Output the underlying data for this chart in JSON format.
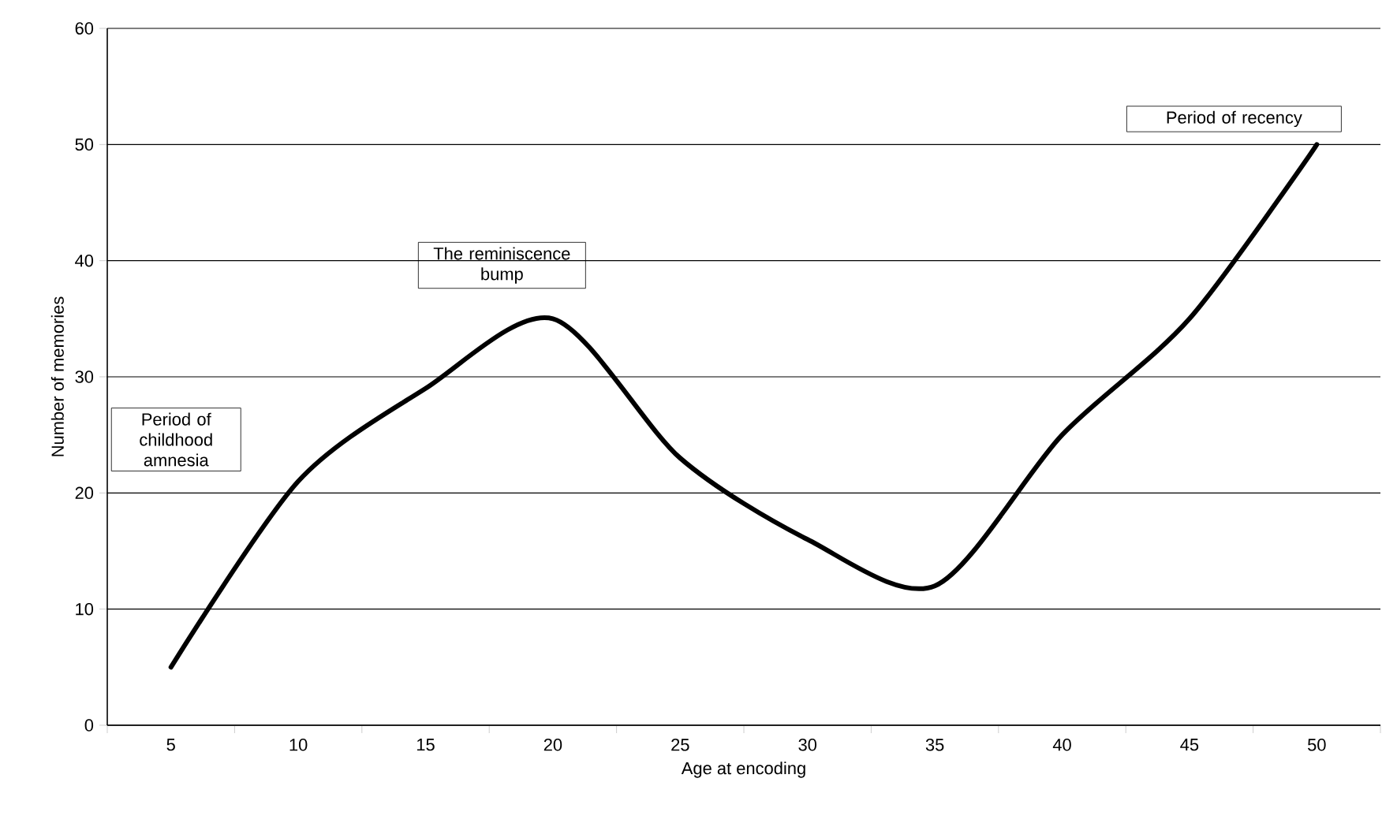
{
  "chart_data": {
    "type": "line",
    "xlabel": "Age at encoding",
    "ylabel": "Number of memories",
    "categories": [
      "5",
      "10",
      "15",
      "20",
      "25",
      "30",
      "35",
      "40",
      "45",
      "50"
    ],
    "values": [
      5,
      21,
      29,
      35,
      23,
      16,
      12,
      25,
      35,
      50
    ],
    "color": "#000000",
    "marker": "none",
    "line_style": "solid",
    "ylim": [
      0,
      60
    ],
    "yticks": [
      0,
      10,
      20,
      30,
      40,
      50,
      60
    ],
    "grid": "y",
    "annotations": [
      "Period of childhood amnesia",
      "The reminiscence bump",
      "Period of recency"
    ]
  }
}
